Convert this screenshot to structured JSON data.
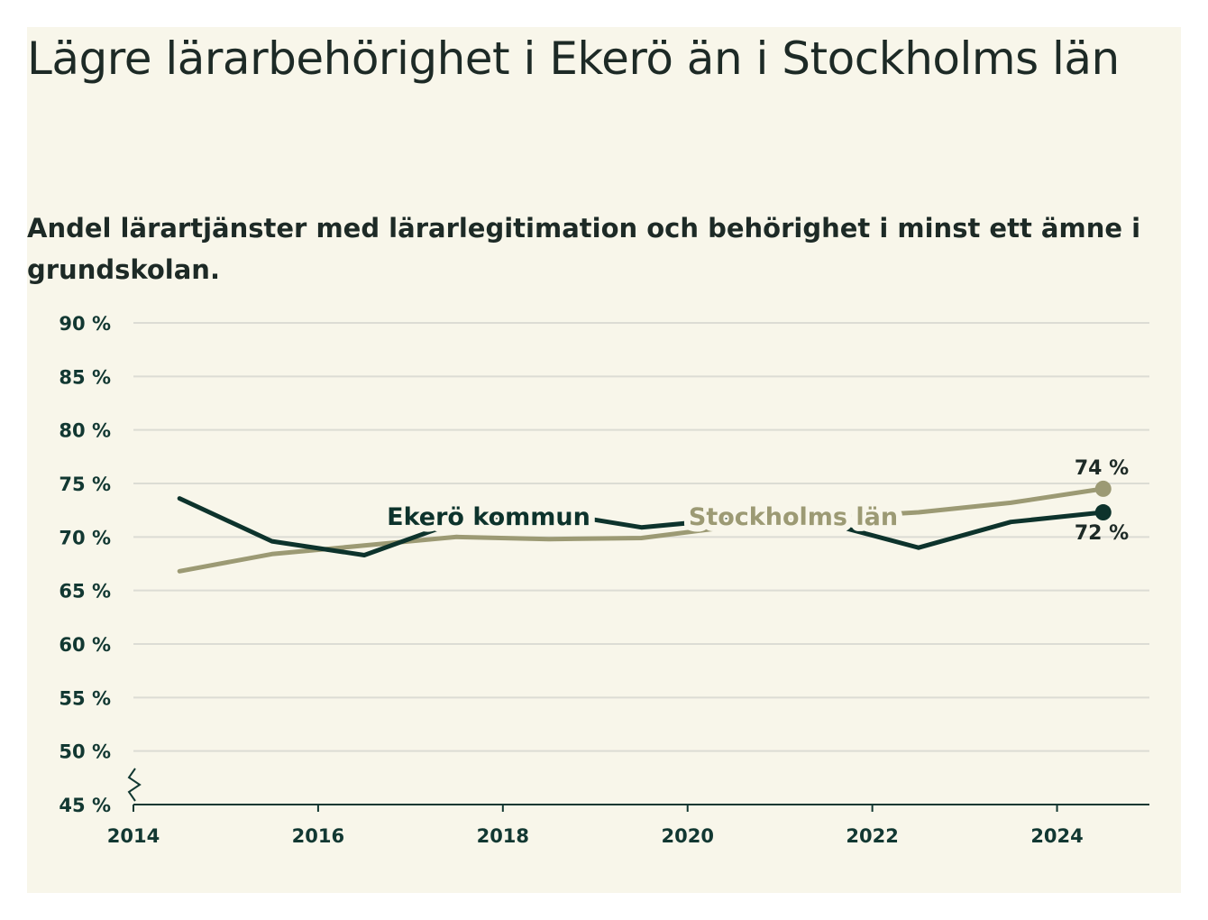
{
  "title": "Lägre lärarbehörighet i Ekerö än i Stockholms län",
  "subtitle": "Andel lärartjänster med lärarlegitimation och behörighet i minst ett ämne i grundskolan.",
  "colors": {
    "background": "#f8f6ea",
    "ekero": "#0d332c",
    "stockholm": "#9c9a74",
    "grid": "#dcdcd4"
  },
  "chart_data": {
    "type": "line",
    "x_ticks": [
      "2014",
      "2016",
      "2018",
      "2020",
      "2022",
      "2024"
    ],
    "y_ticks": [
      "90 %",
      "85 %",
      "80 %",
      "75 %",
      "70 %",
      "65 %",
      "60 %",
      "55 %",
      "50 %",
      "45 %"
    ],
    "xlim": [
      2014,
      2025.0
    ],
    "ylim": [
      45,
      90
    ],
    "series": [
      {
        "name": "Ekerö kommun",
        "color": "#0d332c",
        "end_label": "72 %",
        "points": [
          [
            2014.5,
            73.6
          ],
          [
            2015.5,
            69.6
          ],
          [
            2016.5,
            68.3
          ],
          [
            2017.5,
            71.4
          ],
          [
            2018.5,
            72.3
          ],
          [
            2019.5,
            70.9
          ],
          [
            2020.5,
            71.7
          ],
          [
            2021.5,
            71.3
          ],
          [
            2022.5,
            69.0
          ],
          [
            2023.5,
            71.4
          ],
          [
            2024.5,
            72.3
          ]
        ]
      },
      {
        "name": "Stockholms län",
        "color": "#9c9a74",
        "end_label": "74 %",
        "points": [
          [
            2014.5,
            66.8
          ],
          [
            2015.5,
            68.4
          ],
          [
            2016.5,
            69.2
          ],
          [
            2017.5,
            70.0
          ],
          [
            2018.5,
            69.8
          ],
          [
            2019.5,
            69.9
          ],
          [
            2020.5,
            71.0
          ],
          [
            2021.5,
            71.8
          ],
          [
            2022.5,
            72.3
          ],
          [
            2023.5,
            73.2
          ],
          [
            2024.5,
            74.5
          ]
        ]
      }
    ]
  }
}
